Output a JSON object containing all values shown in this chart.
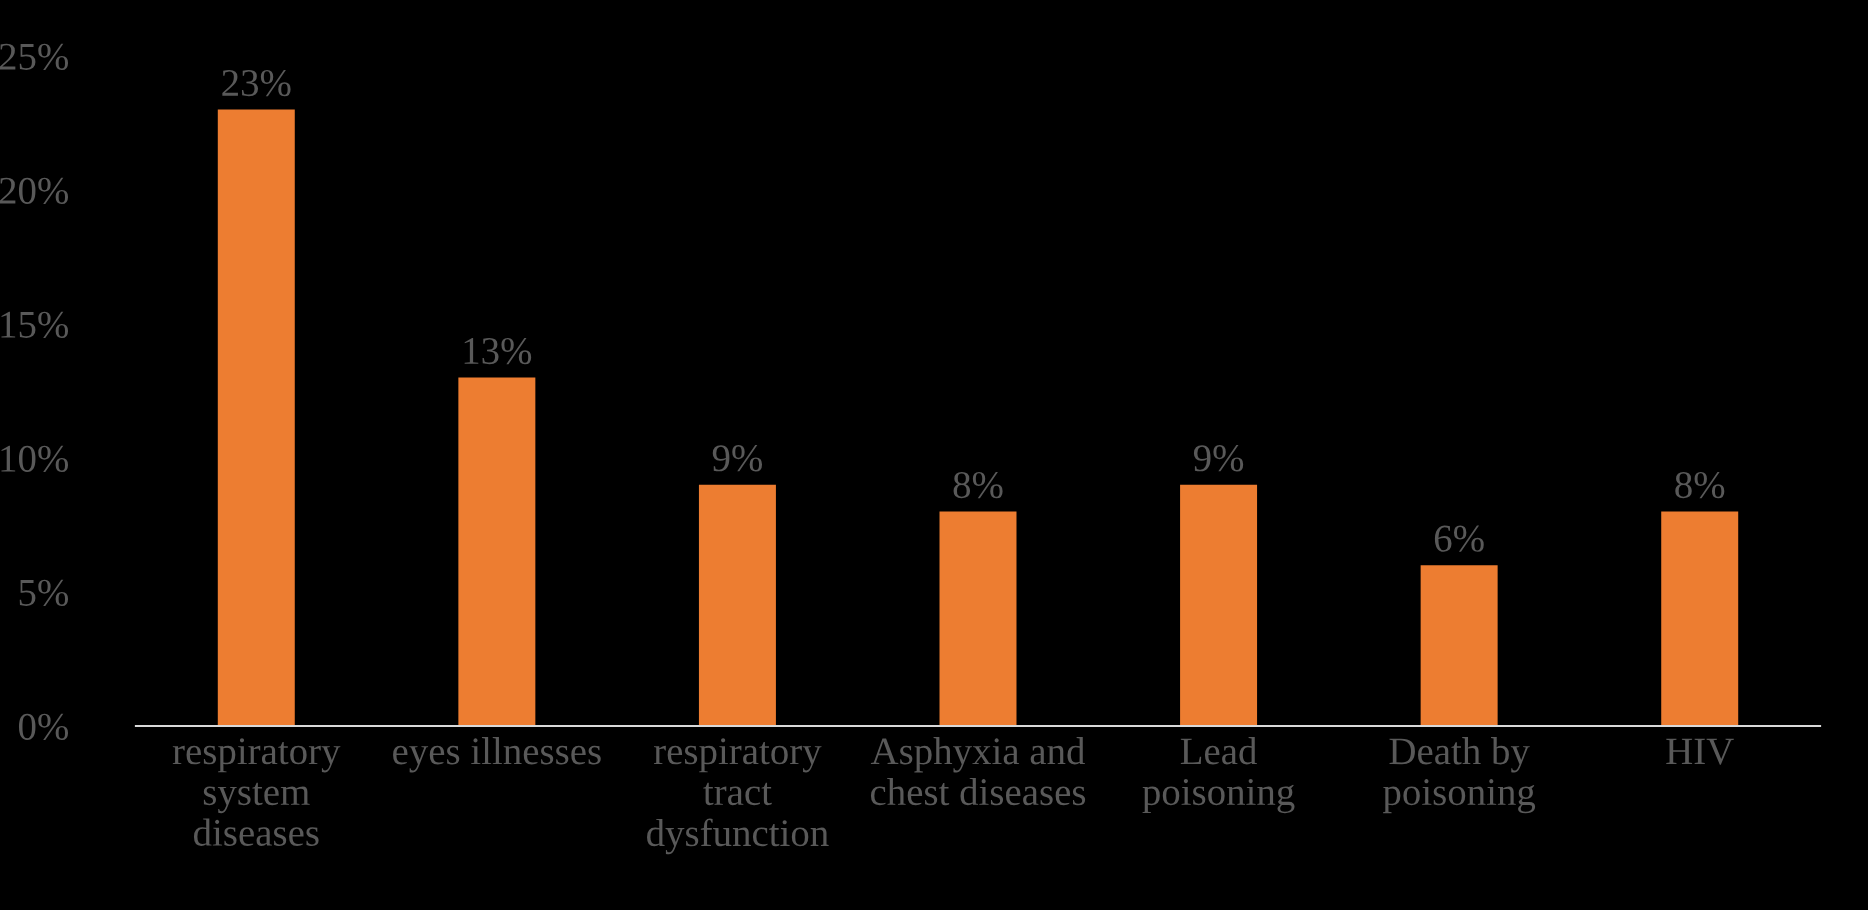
{
  "chart_data": {
    "type": "bar",
    "categories": [
      "respiratory\nsystem\ndiseases",
      "eyes illnesses",
      "respiratory\ntract\ndysfunction",
      "Asphyxia and\nchest diseases",
      "Lead\npoisoning",
      "Death by\npoisoning",
      "HIV"
    ],
    "values": [
      23,
      13,
      9,
      8,
      9,
      6,
      8
    ],
    "value_labels": [
      "23%",
      "13%",
      "9%",
      "8%",
      "9%",
      "6%",
      "8%"
    ],
    "color": "#ed7d31",
    "ylim": [
      0,
      25
    ],
    "yticks": [
      {
        "value": 0,
        "label": "0%"
      },
      {
        "value": 5,
        "label": "5%"
      },
      {
        "value": 10,
        "label": "10%"
      },
      {
        "value": 15,
        "label": "15%"
      },
      {
        "value": 20,
        "label": "20%"
      },
      {
        "value": 25,
        "label": "25%"
      }
    ],
    "grid": false,
    "legend": false
  }
}
